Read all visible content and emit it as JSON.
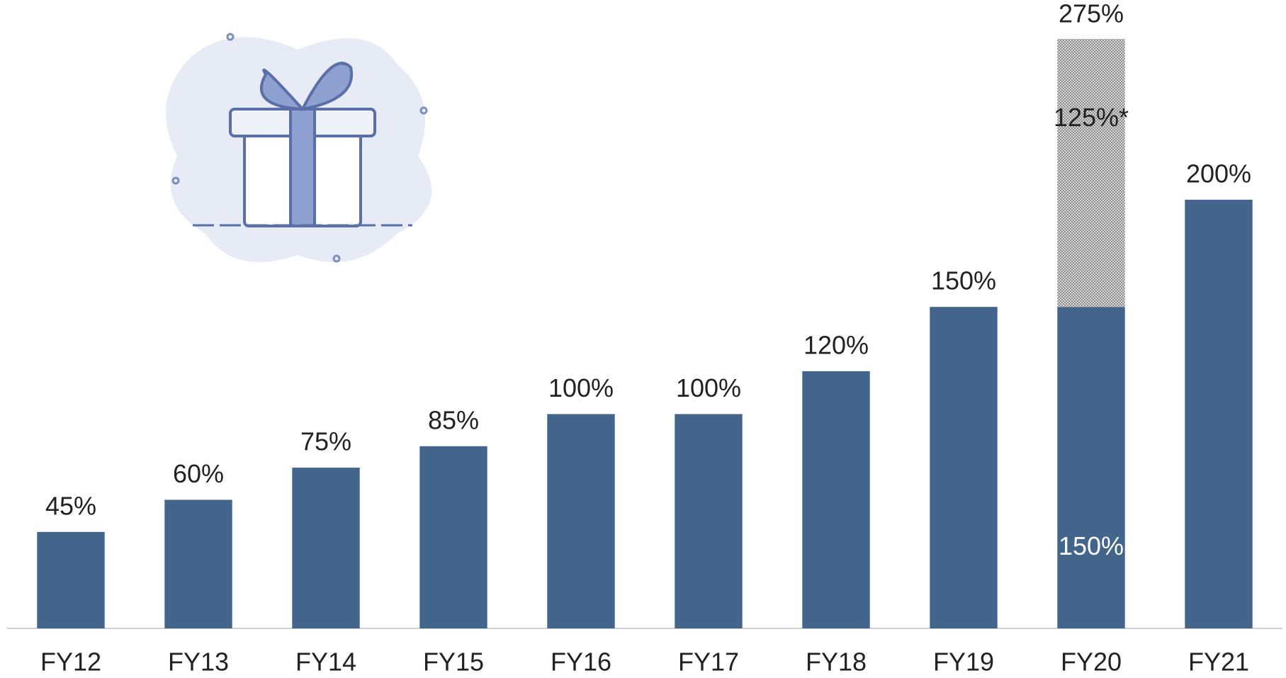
{
  "chart_data": {
    "type": "stacked_bar",
    "categories": [
      "FY12",
      "FY13",
      "FY14",
      "FY15",
      "FY16",
      "FY17",
      "FY18",
      "FY19",
      "FY20",
      "FY21"
    ],
    "series": [
      {
        "color": "#44658b",
        "values": [
          45,
          60,
          75,
          85,
          100,
          100,
          120,
          150,
          150,
          200
        ],
        "value_labels": [
          "45%",
          "60%",
          "75%",
          "85%",
          "100%",
          "100%",
          "120%",
          "150%",
          "150%",
          "200%"
        ]
      },
      {
        "color": "#8c8c8c",
        "hatch": true,
        "values": [
          null,
          null,
          null,
          null,
          null,
          null,
          null,
          null,
          125,
          null
        ],
        "value_labels": [
          null,
          null,
          null,
          null,
          null,
          null,
          null,
          null,
          "125%*",
          null
        ]
      }
    ],
    "totals": [
      null,
      null,
      null,
      null,
      null,
      null,
      null,
      null,
      275,
      null
    ],
    "total_labels": [
      null,
      null,
      null,
      null,
      null,
      null,
      null,
      null,
      "275%",
      null
    ]
  }
}
